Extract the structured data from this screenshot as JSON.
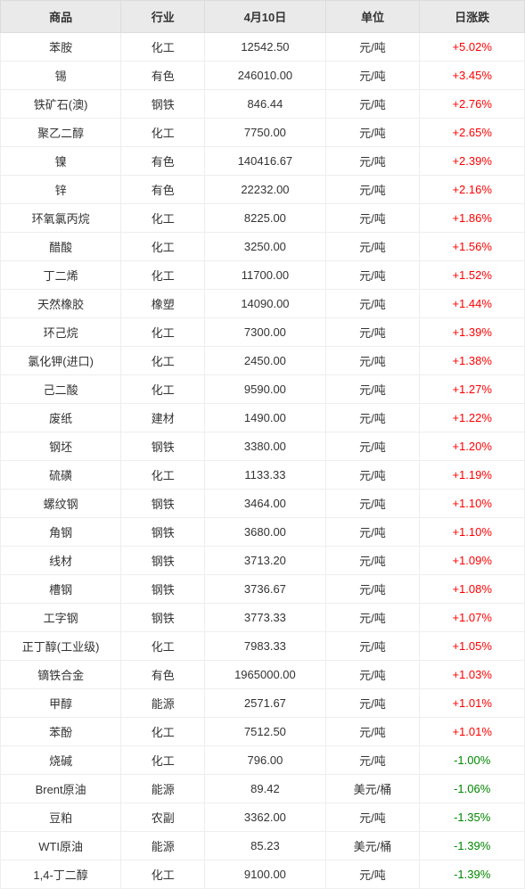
{
  "table": {
    "type": "table",
    "header_bg": "#eaeaea",
    "header_color": "#333333",
    "header_fontsize": 13,
    "cell_fontsize": 13,
    "cell_color": "#333333",
    "border_color": "#eeeeee",
    "header_border_color": "#dcdcdc",
    "pos_color": "#ff0000",
    "neg_color": "#008800",
    "background_color": "#ffffff",
    "columns": [
      "商品",
      "行业",
      "4月10日",
      "单位",
      "日涨跌"
    ],
    "column_widths_pct": [
      23,
      16,
      23,
      18,
      20
    ],
    "rows": [
      {
        "product": "苯胺",
        "industry": "化工",
        "price": "12542.50",
        "unit": "元/吨",
        "change": "+5.02%",
        "dir": "pos"
      },
      {
        "product": "锡",
        "industry": "有色",
        "price": "246010.00",
        "unit": "元/吨",
        "change": "+3.45%",
        "dir": "pos"
      },
      {
        "product": "铁矿石(澳)",
        "industry": "钢铁",
        "price": "846.44",
        "unit": "元/吨",
        "change": "+2.76%",
        "dir": "pos"
      },
      {
        "product": "聚乙二醇",
        "industry": "化工",
        "price": "7750.00",
        "unit": "元/吨",
        "change": "+2.65%",
        "dir": "pos"
      },
      {
        "product": "镍",
        "industry": "有色",
        "price": "140416.67",
        "unit": "元/吨",
        "change": "+2.39%",
        "dir": "pos"
      },
      {
        "product": "锌",
        "industry": "有色",
        "price": "22232.00",
        "unit": "元/吨",
        "change": "+2.16%",
        "dir": "pos"
      },
      {
        "product": "环氧氯丙烷",
        "industry": "化工",
        "price": "8225.00",
        "unit": "元/吨",
        "change": "+1.86%",
        "dir": "pos"
      },
      {
        "product": "醋酸",
        "industry": "化工",
        "price": "3250.00",
        "unit": "元/吨",
        "change": "+1.56%",
        "dir": "pos"
      },
      {
        "product": "丁二烯",
        "industry": "化工",
        "price": "11700.00",
        "unit": "元/吨",
        "change": "+1.52%",
        "dir": "pos"
      },
      {
        "product": "天然橡胶",
        "industry": "橡塑",
        "price": "14090.00",
        "unit": "元/吨",
        "change": "+1.44%",
        "dir": "pos"
      },
      {
        "product": "环己烷",
        "industry": "化工",
        "price": "7300.00",
        "unit": "元/吨",
        "change": "+1.39%",
        "dir": "pos"
      },
      {
        "product": "氯化钾(进口)",
        "industry": "化工",
        "price": "2450.00",
        "unit": "元/吨",
        "change": "+1.38%",
        "dir": "pos"
      },
      {
        "product": "己二酸",
        "industry": "化工",
        "price": "9590.00",
        "unit": "元/吨",
        "change": "+1.27%",
        "dir": "pos"
      },
      {
        "product": "废纸",
        "industry": "建材",
        "price": "1490.00",
        "unit": "元/吨",
        "change": "+1.22%",
        "dir": "pos"
      },
      {
        "product": "钢坯",
        "industry": "钢铁",
        "price": "3380.00",
        "unit": "元/吨",
        "change": "+1.20%",
        "dir": "pos"
      },
      {
        "product": "硫磺",
        "industry": "化工",
        "price": "1133.33",
        "unit": "元/吨",
        "change": "+1.19%",
        "dir": "pos"
      },
      {
        "product": "螺纹钢",
        "industry": "钢铁",
        "price": "3464.00",
        "unit": "元/吨",
        "change": "+1.10%",
        "dir": "pos"
      },
      {
        "product": "角钢",
        "industry": "钢铁",
        "price": "3680.00",
        "unit": "元/吨",
        "change": "+1.10%",
        "dir": "pos"
      },
      {
        "product": "线材",
        "industry": "钢铁",
        "price": "3713.20",
        "unit": "元/吨",
        "change": "+1.09%",
        "dir": "pos"
      },
      {
        "product": "槽钢",
        "industry": "钢铁",
        "price": "3736.67",
        "unit": "元/吨",
        "change": "+1.08%",
        "dir": "pos"
      },
      {
        "product": "工字钢",
        "industry": "钢铁",
        "price": "3773.33",
        "unit": "元/吨",
        "change": "+1.07%",
        "dir": "pos"
      },
      {
        "product": "正丁醇(工业级)",
        "industry": "化工",
        "price": "7983.33",
        "unit": "元/吨",
        "change": "+1.05%",
        "dir": "pos"
      },
      {
        "product": "镝铁合金",
        "industry": "有色",
        "price": "1965000.00",
        "unit": "元/吨",
        "change": "+1.03%",
        "dir": "pos"
      },
      {
        "product": "甲醇",
        "industry": "能源",
        "price": "2571.67",
        "unit": "元/吨",
        "change": "+1.01%",
        "dir": "pos"
      },
      {
        "product": "苯酚",
        "industry": "化工",
        "price": "7512.50",
        "unit": "元/吨",
        "change": "+1.01%",
        "dir": "pos"
      },
      {
        "product": "烧碱",
        "industry": "化工",
        "price": "796.00",
        "unit": "元/吨",
        "change": "-1.00%",
        "dir": "neg"
      },
      {
        "product": "Brent原油",
        "industry": "能源",
        "price": "89.42",
        "unit": "美元/桶",
        "change": "-1.06%",
        "dir": "neg"
      },
      {
        "product": "豆粕",
        "industry": "农副",
        "price": "3362.00",
        "unit": "元/吨",
        "change": "-1.35%",
        "dir": "neg"
      },
      {
        "product": "WTI原油",
        "industry": "能源",
        "price": "85.23",
        "unit": "美元/桶",
        "change": "-1.39%",
        "dir": "neg"
      },
      {
        "product": "1,4-丁二醇",
        "industry": "化工",
        "price": "9100.00",
        "unit": "元/吨",
        "change": "-1.39%",
        "dir": "neg"
      }
    ]
  }
}
